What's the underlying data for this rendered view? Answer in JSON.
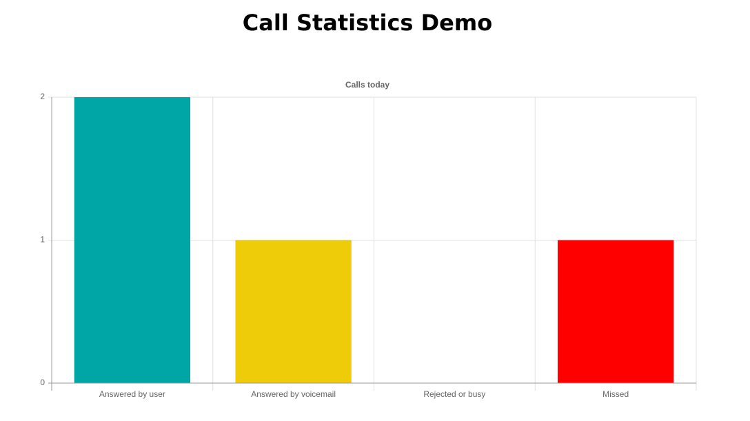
{
  "heading": "Call Statistics Demo",
  "chart_data": {
    "type": "bar",
    "title": "Calls today",
    "categories": [
      "Answered by user",
      "Answered by voicemail",
      "Rejected or busy",
      "Missed"
    ],
    "values": [
      2,
      1,
      0,
      1
    ],
    "colors": [
      "#00a6a6",
      "#eecc0a",
      "#3366cc",
      "#ff0000"
    ],
    "ylim": [
      0,
      2
    ],
    "yticks": [
      0,
      1,
      2
    ],
    "grid": true
  }
}
